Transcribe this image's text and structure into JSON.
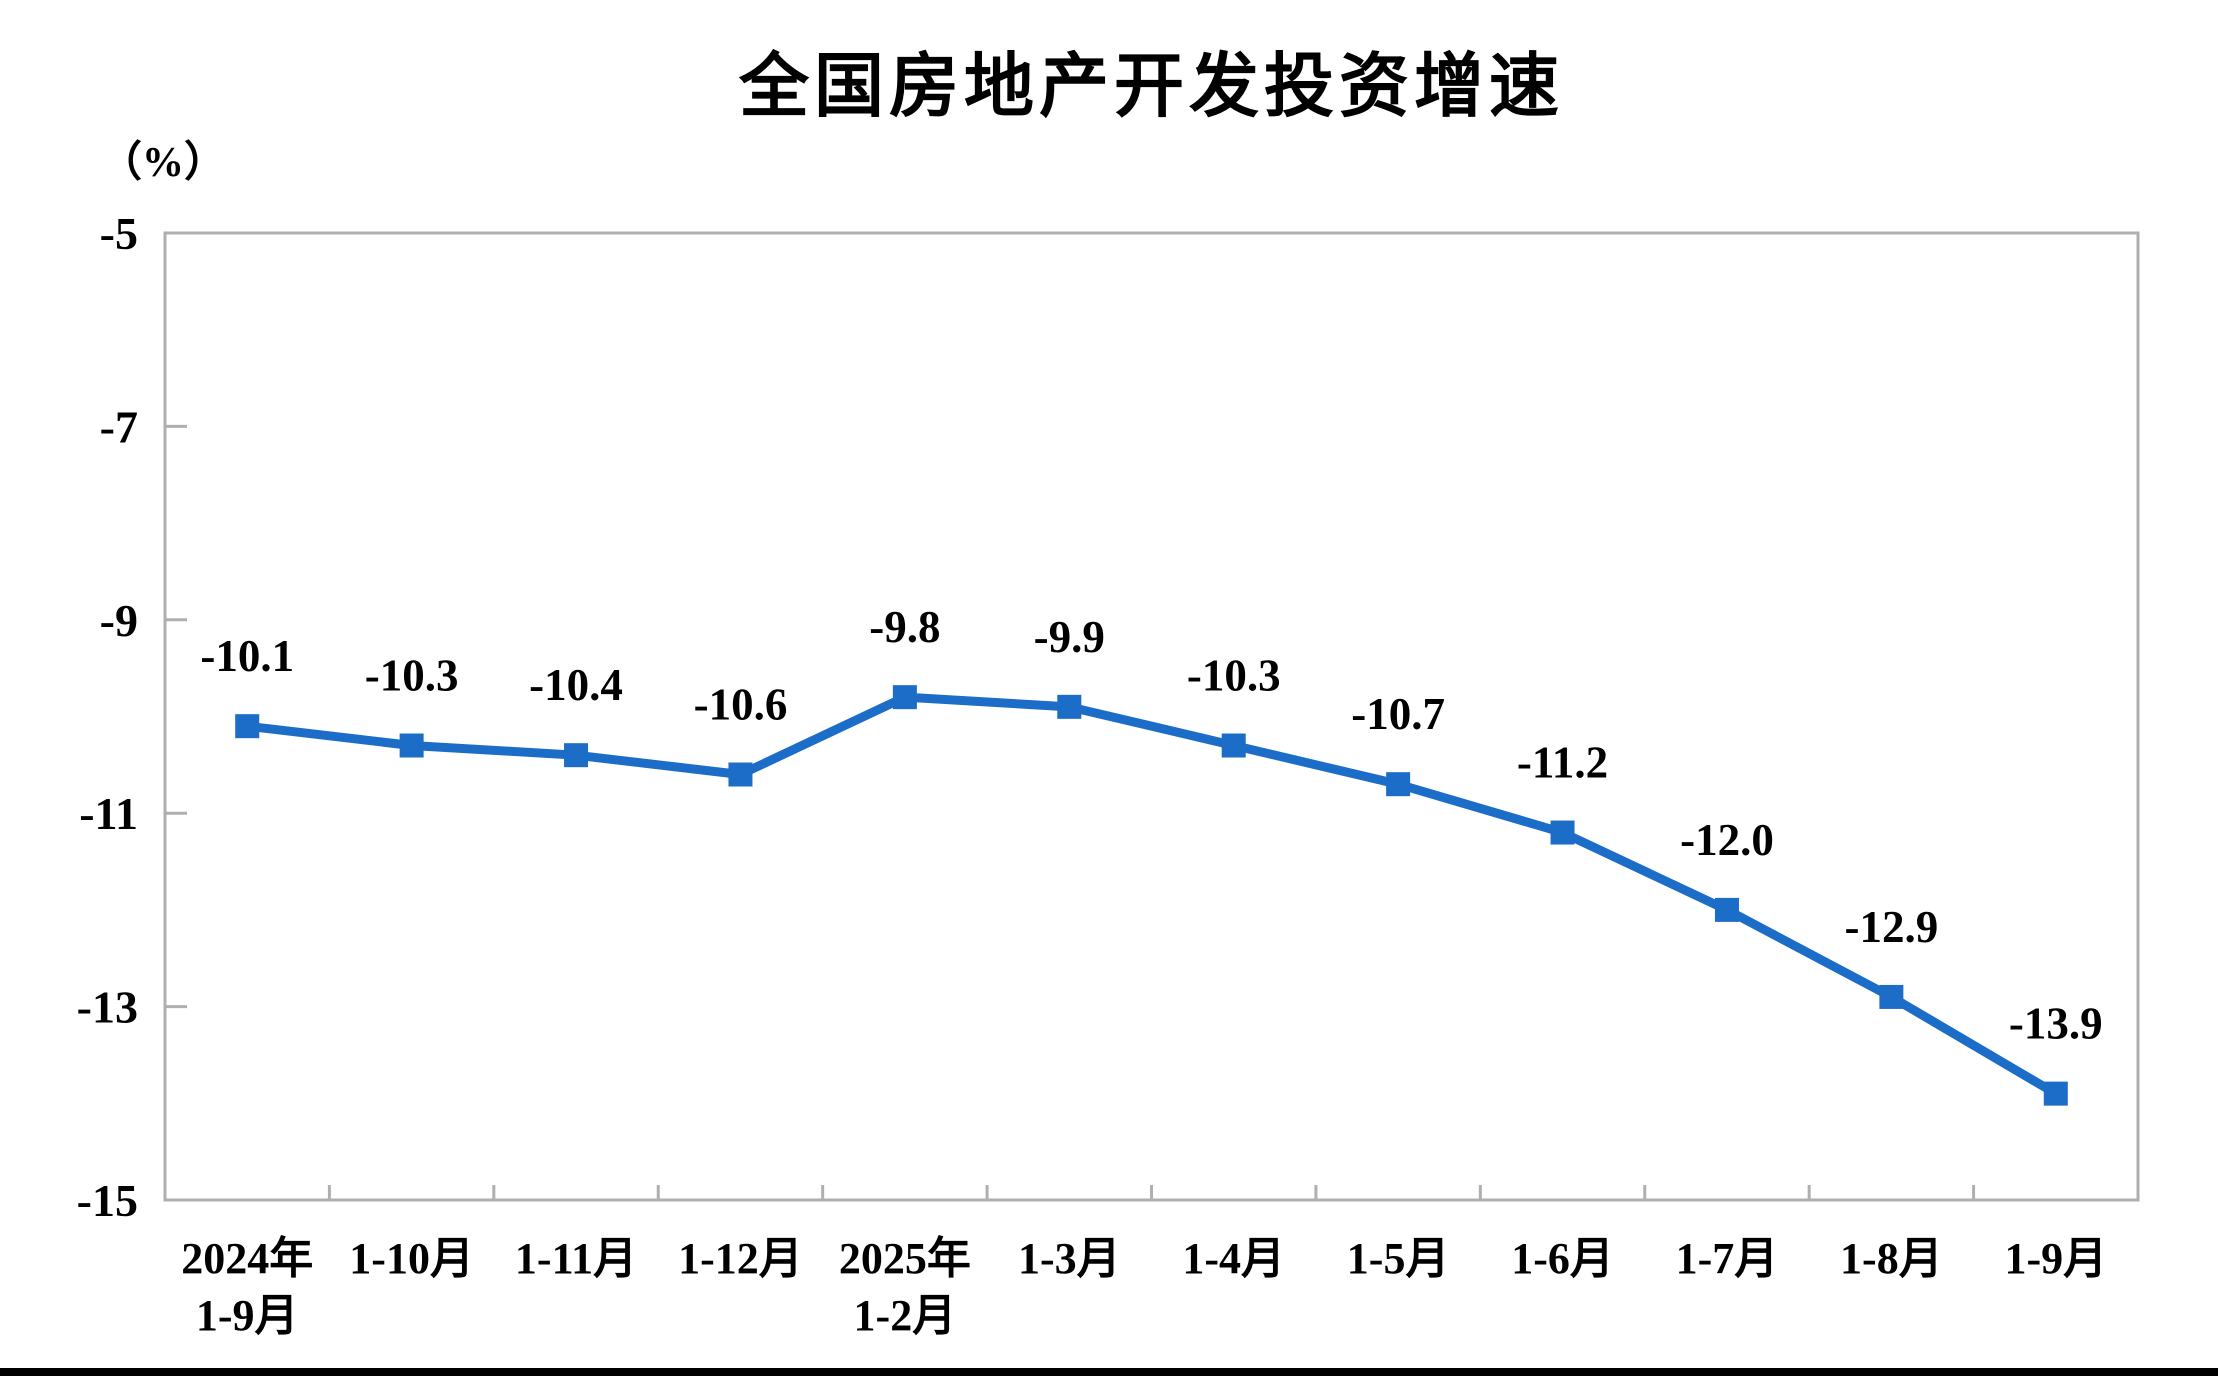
{
  "page": {
    "background_color": "#ffffff",
    "bottom_bar_color": "#000000"
  },
  "chart_data": {
    "type": "line",
    "title": "全国房地产开发投资增速",
    "unit_label": "（%）",
    "categories": [
      [
        "2024年",
        "1-9月"
      ],
      [
        "1-10月"
      ],
      [
        "1-11月"
      ],
      [
        "1-12月"
      ],
      [
        "2025年",
        "1-2月"
      ],
      [
        "1-3月"
      ],
      [
        "1-4月"
      ],
      [
        "1-5月"
      ],
      [
        "1-6月"
      ],
      [
        "1-7月"
      ],
      [
        "1-8月"
      ],
      [
        "1-9月"
      ]
    ],
    "series": [
      {
        "name": "全国房地产开发投资增速",
        "color": "#1C6DC8",
        "values": [
          -10.1,
          -10.3,
          -10.4,
          -10.6,
          -9.8,
          -9.9,
          -10.3,
          -10.7,
          -11.2,
          -12.0,
          -12.9,
          -13.9
        ]
      }
    ],
    "data_labels": [
      "-10.1",
      "-10.3",
      "-10.4",
      "-10.6",
      "-9.8",
      "-9.9",
      "-10.3",
      "-10.7",
      "-11.2",
      "-12.0",
      "-12.9",
      "-13.9"
    ],
    "y_axis": {
      "min": -15,
      "max": -5,
      "tick_values": [
        -5,
        -7,
        -9,
        -11,
        -13,
        -15
      ],
      "tick_labels": [
        "-5",
        "-7",
        "-9",
        "-11",
        "-13",
        "-15"
      ]
    },
    "grid": false,
    "legend_position": "none",
    "axis_color": "#AFAFAF",
    "label_color": "#000000",
    "marker_shape": "square"
  }
}
